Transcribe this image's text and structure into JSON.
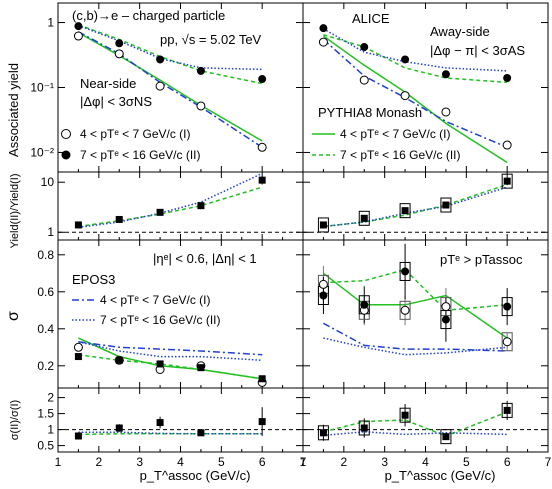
{
  "chart_data": {
    "type": "scatter",
    "x_unit_label": "p_T^assoc (GeV/c)",
    "xlim": [
      1,
      7
    ],
    "x_ticks": [
      "1",
      "2",
      "3",
      "4",
      "5",
      "6",
      "7"
    ],
    "x": [
      1.5,
      2.5,
      3.5,
      4.5,
      6.0
    ],
    "texts": {
      "process": "(c,b)→e – charged particle",
      "energy": "pp, √s = 5.02 TeV",
      "near_side": "Near-side",
      "near_cut": "|Δφ| < 3σNS",
      "alice": "ALICE",
      "away_side": "Away-side",
      "away_cut": "|Δφ − π| < 3σAS",
      "pythia": "PYTHIA8 Monash",
      "epos": "EPOS3",
      "eta_cut": "|ηᵉ| < 0.6, |Δη| < 1",
      "pt_order": "pTᵉ > pTassoc",
      "leg_data_1": "4 < pTᵉ < 7 GeV/c (I)",
      "leg_data_2": "7 < pTᵉ < 16 GeV/c (II)",
      "leg_py_1": "4 < pTᵉ < 7 GeV/c (I)",
      "leg_py_2": "7 < pTᵉ < 16 GeV/c (II)",
      "leg_ep_1": "4 < pTᵉ < 7 GeV/c (I)",
      "leg_ep_2": "7 < pTᵉ < 16 GeV/c (II)"
    },
    "rows": [
      {
        "name": "yield",
        "ylabel": "Associated yield",
        "log": true,
        "ylim": [
          0.005,
          2.0
        ],
        "y_ticks": [
          {
            "v": 0.01,
            "label": "10⁻²"
          },
          {
            "v": 0.1,
            "label": "10⁻¹"
          },
          {
            "v": 1,
            "label": "1"
          }
        ]
      },
      {
        "name": "yield_ratio",
        "ylabel": "Yield(II)/Yield(I)",
        "log": true,
        "ylim": [
          0.7,
          16
        ],
        "ref_line": 1,
        "y_ticks": [
          {
            "v": 1,
            "label": "1"
          },
          {
            "v": 10,
            "label": "10"
          }
        ]
      },
      {
        "name": "sigma",
        "ylabel": "σ",
        "log": false,
        "ylim": [
          0.08,
          0.88
        ],
        "y_ticks": [
          {
            "v": 0.2,
            "label": "0.2"
          },
          {
            "v": 0.4,
            "label": "0.4"
          },
          {
            "v": 0.6,
            "label": "0.6"
          },
          {
            "v": 0.8,
            "label": "0.8"
          }
        ]
      },
      {
        "name": "sigma_ratio",
        "ylabel": "σ(II)/σ(I)",
        "log": false,
        "ylim": [
          0.3,
          2.3
        ],
        "ref_line": 1,
        "y_ticks": [
          {
            "v": 0.5,
            "label": "0.5"
          },
          {
            "v": 1,
            "label": "1"
          },
          {
            "v": 1.5,
            "label": "1.5"
          },
          {
            "v": 2,
            "label": "2"
          }
        ]
      }
    ],
    "panels": {
      "near": {
        "yield": {
          "data_I": [
            0.62,
            0.33,
            0.105,
            0.052,
            0.012
          ],
          "data_II": [
            0.88,
            0.48,
            0.27,
            0.18,
            0.135
          ],
          "pythia_I": [
            0.7,
            0.31,
            0.13,
            0.053,
            0.015
          ],
          "pythia_II": [
            0.92,
            0.55,
            0.3,
            0.18,
            0.115
          ],
          "epos_I": [
            0.72,
            0.33,
            0.12,
            0.05,
            0.012
          ],
          "epos_II": [
            0.9,
            0.52,
            0.28,
            0.2,
            0.19
          ]
        },
        "yield_ratio": {
          "data": [
            1.4,
            1.8,
            2.5,
            3.4,
            11.0
          ],
          "data_err": [
            0.2,
            0.25,
            0.35,
            0.5,
            2.0
          ],
          "pythia": [
            1.3,
            1.7,
            2.3,
            3.4,
            8.0
          ],
          "epos": [
            1.25,
            1.6,
            2.4,
            4.0,
            15.0
          ]
        },
        "sigma": {
          "data_I": [
            0.3,
            0.23,
            0.18,
            0.2,
            0.11
          ],
          "data_II": [
            0.25,
            0.23,
            0.21,
            0.19,
            0.13
          ],
          "pythia_I": [
            0.35,
            0.25,
            0.2,
            0.18,
            0.13
          ],
          "pythia_II": [
            0.26,
            0.23,
            0.21,
            0.18,
            0.13
          ],
          "epos_I": [
            0.33,
            0.3,
            0.29,
            0.28,
            0.26
          ],
          "epos_II": [
            0.33,
            0.28,
            0.25,
            0.25,
            0.23
          ]
        },
        "sigma_ratio": {
          "data": [
            0.8,
            1.05,
            1.22,
            0.9,
            1.25
          ],
          "data_err": [
            0.05,
            0.12,
            0.18,
            0.08,
            0.45
          ],
          "pythia": [
            0.85,
            0.87,
            0.87,
            0.87,
            0.87
          ],
          "epos": [
            0.92,
            0.92,
            0.88,
            0.87,
            0.87
          ]
        }
      },
      "away": {
        "yield": {
          "data_I": [
            0.5,
            0.13,
            0.075,
            0.042,
            0.013
          ],
          "data_II": [
            0.82,
            0.42,
            0.27,
            0.16,
            0.14
          ],
          "pythia_I": [
            0.62,
            0.22,
            0.085,
            0.028,
            0.007
          ],
          "pythia_II": [
            0.65,
            0.42,
            0.2,
            0.14,
            0.12
          ],
          "epos_I": [
            0.55,
            0.15,
            0.07,
            0.03,
            0.012
          ],
          "epos_II": [
            0.8,
            0.35,
            0.25,
            0.2,
            0.18
          ]
        },
        "yield_ratio": {
          "data": [
            1.4,
            1.9,
            2.7,
            3.5,
            10.5
          ],
          "data_err": [
            0.2,
            0.3,
            0.4,
            0.5,
            1.8
          ],
          "pythia": [
            1.3,
            1.6,
            2.2,
            3.5,
            9.0
          ],
          "epos": [
            1.3,
            1.6,
            2.4,
            3.3,
            8.0
          ]
        },
        "sigma": {
          "data_I": [
            0.64,
            0.5,
            0.5,
            0.52,
            0.33
          ],
          "data_II": [
            0.58,
            0.53,
            0.71,
            0.45,
            0.52
          ],
          "err_I": [
            0.1,
            0.08,
            0.08,
            0.1,
            0.05
          ],
          "err_II": [
            0.1,
            0.1,
            0.15,
            0.12,
            0.1
          ],
          "pythia_I": [
            0.7,
            0.53,
            0.53,
            0.58,
            0.35
          ],
          "pythia_II": [
            0.65,
            0.66,
            0.72,
            0.5,
            0.53
          ],
          "epos_I": [
            0.43,
            0.31,
            0.29,
            0.29,
            0.28
          ],
          "epos_II": [
            0.35,
            0.3,
            0.26,
            0.27,
            0.3
          ]
        },
        "sigma_ratio": {
          "data": [
            0.9,
            1.05,
            1.45,
            0.78,
            1.6
          ],
          "data_err": [
            0.25,
            0.3,
            0.35,
            0.1,
            0.3
          ],
          "pythia": [
            0.93,
            1.25,
            1.3,
            0.8,
            1.55
          ],
          "epos": [
            0.82,
            0.93,
            0.85,
            0.9,
            0.85
          ]
        }
      }
    }
  }
}
